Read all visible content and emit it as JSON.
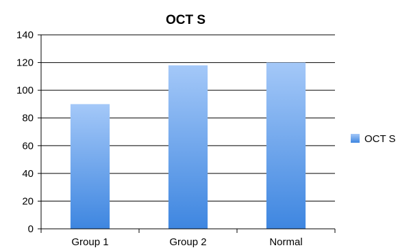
{
  "chart_data": {
    "type": "bar",
    "title": "OCT S",
    "categories": [
      "Group 1",
      "Group 2",
      "Normal"
    ],
    "series": [
      {
        "name": "OCT S",
        "values": [
          90,
          118,
          120
        ]
      }
    ],
    "ylim": [
      0,
      140
    ],
    "yticks": [
      0,
      20,
      40,
      60,
      80,
      100,
      120,
      140
    ],
    "grid": true,
    "legend": "right",
    "colors": {
      "bar_top": "#a4c8f8",
      "bar_bottom": "#3e86e0",
      "grid": "#000000"
    }
  }
}
